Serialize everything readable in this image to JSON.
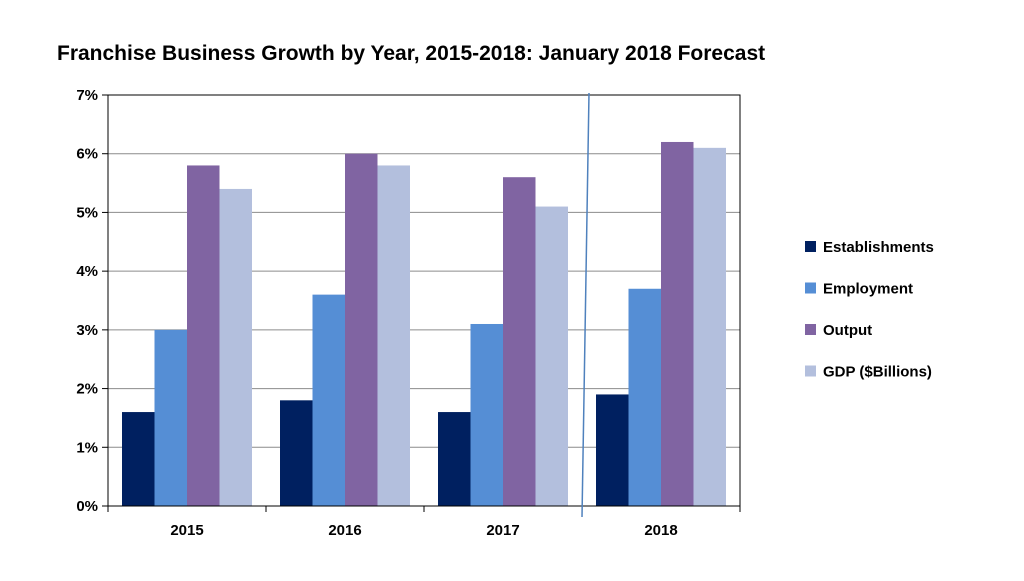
{
  "chart_data": {
    "type": "bar",
    "title": "Franchise Business Growth by Year, 2015-2018: January 2018 Forecast",
    "categories": [
      "2015",
      "2016",
      "2017",
      "2018"
    ],
    "series": [
      {
        "name": "Establishments",
        "values": [
          1.6,
          1.8,
          1.6,
          1.9
        ],
        "color": "#002060"
      },
      {
        "name": "Employment",
        "values": [
          3.0,
          3.6,
          3.1,
          3.7
        ],
        "color": "#558ed5"
      },
      {
        "name": "Output",
        "values": [
          5.8,
          6.0,
          5.6,
          6.2
        ],
        "color": "#8064a2"
      },
      {
        "name": "GDP ($Billions)",
        "values": [
          5.4,
          5.8,
          5.1,
          6.1
        ],
        "color": "#b3bfdd"
      }
    ],
    "yticks": [
      "0%",
      "1%",
      "2%",
      "3%",
      "4%",
      "5%",
      "6%",
      "7%"
    ],
    "ylim": [
      0,
      7
    ],
    "grid": true,
    "legend_position": "right",
    "forecast_divider_color": "#4f81bd"
  }
}
